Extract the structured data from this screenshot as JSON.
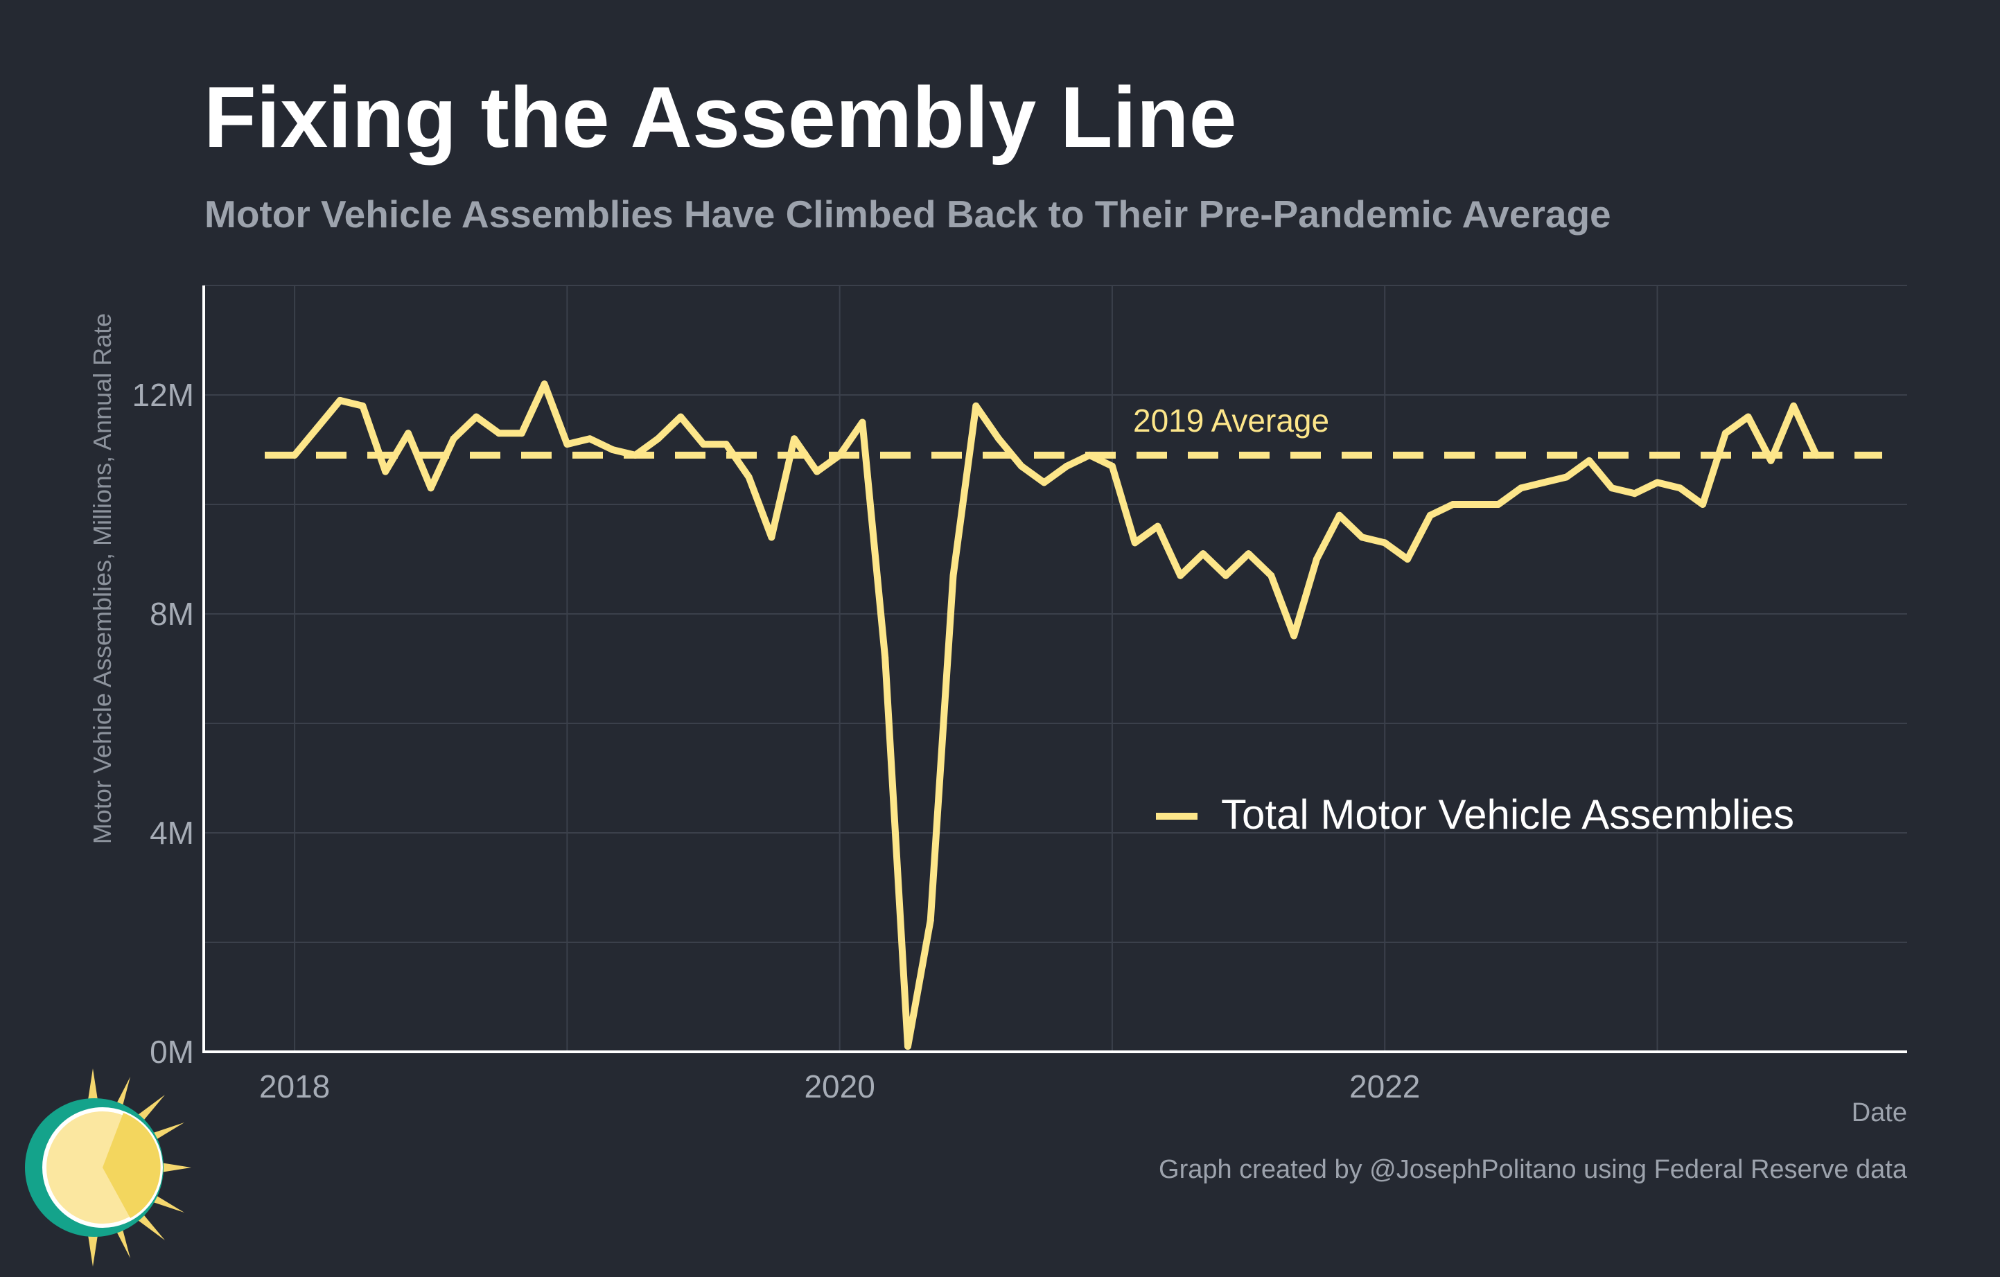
{
  "title": "Fixing the Assembly Line",
  "subtitle": "Motor Vehicle Assemblies Have Climbed Back to Their Pre-Pandemic Average",
  "credit": "Graph created by @JosephPolitano using Federal Reserve data",
  "colors": {
    "background": "#252932",
    "line": "#fde68a",
    "grid": "#3b404b",
    "axis": "#ffffff",
    "tick_text": "#a6acb6"
  },
  "chart_data": {
    "type": "line",
    "title": "Fixing the Assembly Line",
    "subtitle": "Motor Vehicle Assemblies Have Climbed Back to Their Pre-Pandemic Average",
    "xlabel": "Date",
    "ylabel": "Motor Vehicle Assemblies, Millions, Annual Rate",
    "ylim": [
      0,
      14
    ],
    "xlim": [
      "2017-09",
      "2023-12"
    ],
    "y_ticks": [
      {
        "value": 0,
        "label": "0M"
      },
      {
        "value": 4,
        "label": "4M"
      },
      {
        "value": 8,
        "label": "8M"
      },
      {
        "value": 12,
        "label": "12M"
      }
    ],
    "x_ticks": [
      {
        "value": "2018-01",
        "label": "2018"
      },
      {
        "value": "2020-01",
        "label": "2020"
      },
      {
        "value": "2022-01",
        "label": "2022"
      }
    ],
    "grid": true,
    "legend_position": "bottom-right",
    "reference_line": {
      "label": "2019 Average",
      "value": 10.9,
      "style": "dashed"
    },
    "series": [
      {
        "name": "Total Motor Vehicle Assemblies",
        "x": [
          "2018-01",
          "2018-02",
          "2018-03",
          "2018-04",
          "2018-05",
          "2018-06",
          "2018-07",
          "2018-08",
          "2018-09",
          "2018-10",
          "2018-11",
          "2018-12",
          "2019-01",
          "2019-02",
          "2019-03",
          "2019-04",
          "2019-05",
          "2019-06",
          "2019-07",
          "2019-08",
          "2019-09",
          "2019-10",
          "2019-11",
          "2019-12",
          "2020-01",
          "2020-02",
          "2020-03",
          "2020-04",
          "2020-05",
          "2020-06",
          "2020-07",
          "2020-08",
          "2020-09",
          "2020-10",
          "2020-11",
          "2020-12",
          "2021-01",
          "2021-02",
          "2021-03",
          "2021-04",
          "2021-05",
          "2021-06",
          "2021-07",
          "2021-08",
          "2021-09",
          "2021-10",
          "2021-11",
          "2021-12",
          "2022-01",
          "2022-02",
          "2022-03",
          "2022-04",
          "2022-05",
          "2022-06",
          "2022-07",
          "2022-08",
          "2022-09",
          "2022-10",
          "2022-11",
          "2022-12",
          "2023-01",
          "2023-02",
          "2023-03",
          "2023-04",
          "2023-05",
          "2023-06",
          "2023-07",
          "2023-08"
        ],
        "y": [
          10.9,
          11.4,
          11.9,
          11.8,
          10.6,
          11.3,
          10.3,
          11.2,
          11.6,
          11.3,
          11.3,
          12.2,
          11.1,
          11.2,
          11.0,
          10.9,
          11.2,
          11.6,
          11.1,
          11.1,
          10.5,
          9.4,
          11.2,
          10.6,
          10.9,
          11.5,
          7.2,
          0.1,
          2.4,
          8.7,
          11.8,
          11.2,
          10.7,
          10.4,
          10.7,
          10.9,
          10.7,
          9.3,
          9.6,
          8.7,
          9.1,
          8.7,
          9.1,
          8.7,
          7.6,
          9.0,
          9.8,
          9.4,
          9.3,
          9.0,
          9.8,
          10.0,
          10.0,
          10.0,
          10.3,
          10.4,
          10.5,
          10.8,
          10.3,
          10.2,
          10.4,
          10.3,
          10.0,
          11.3,
          11.6,
          10.8,
          11.8,
          10.9
        ]
      }
    ]
  }
}
